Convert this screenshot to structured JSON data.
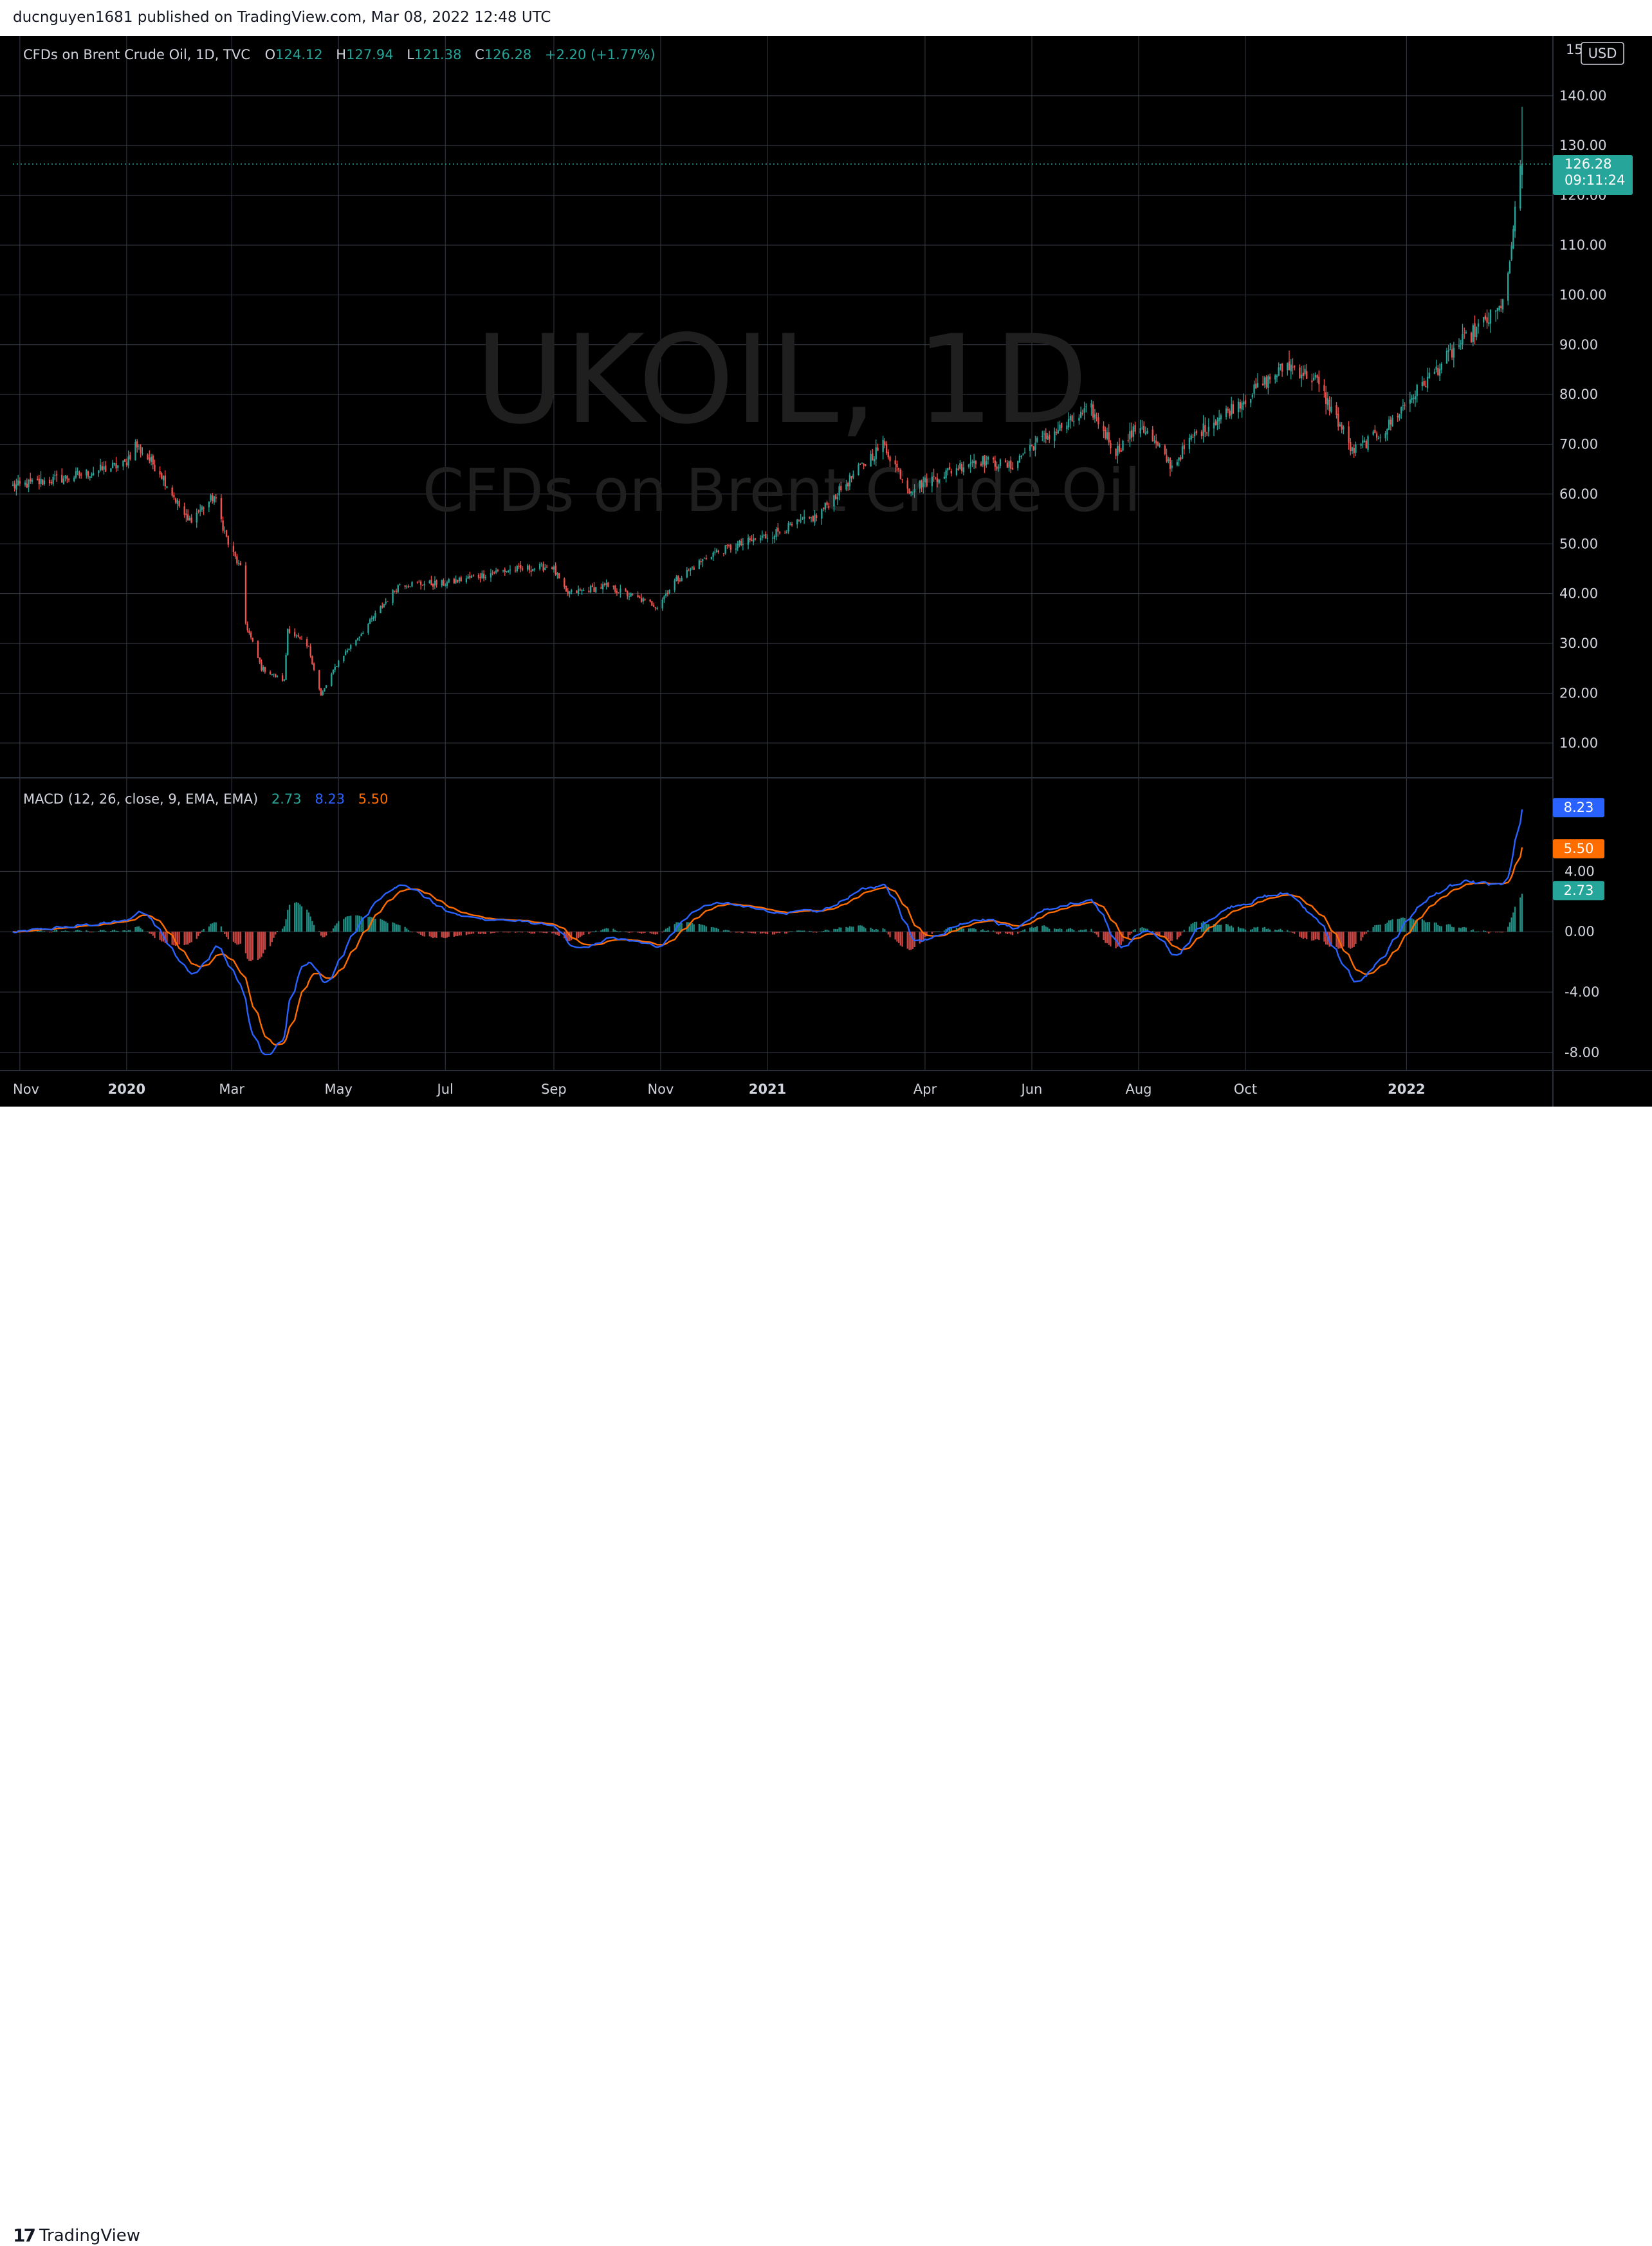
{
  "header": {
    "published_line": "ducnguyen1681 published on TradingView.com, Mar 08, 2022 12:48 UTC"
  },
  "footer": {
    "brand": "TradingView"
  },
  "legend": {
    "instrument": "CFDs on Brent Crude Oil, 1D, TVC",
    "o_label": "O",
    "o_value": "124.12",
    "h_label": "H",
    "h_value": "127.94",
    "l_label": "L",
    "l_value": "121.38",
    "c_label": "C",
    "c_value": "126.28",
    "change": "+2.20 (+1.77%)"
  },
  "watermark": {
    "symbol": "UKOIL, 1D",
    "name": "CFDs on Brent Crude Oil"
  },
  "price_axis": {
    "currency": "USD",
    "last_price": "126.28",
    "countdown": "09:11:24",
    "top_partial_label": "15"
  },
  "macd_legend": {
    "label": "MACD (12, 26, close, 9, EMA, EMA)",
    "hist": "2.73",
    "macd": "8.23",
    "signal": "5.50"
  },
  "colors": {
    "background": "#000000",
    "grid": "#363a45",
    "up": "#26a69a",
    "down": "#ef5350",
    "macd_line": "#2962ff",
    "signal_line": "#ff6d00",
    "text": "#d1d4dc",
    "watermark": "#1f1f1f"
  },
  "chart_data": [
    {
      "type": "candlestick",
      "title": "CFDs on Brent Crude Oil, 1D, TVC",
      "ylim": [
        3,
        152
      ],
      "y_ticks": [
        "10.00",
        "20.00",
        "30.00",
        "40.00",
        "50.00",
        "60.00",
        "70.00",
        "80.00",
        "90.00",
        "100.00",
        "110.00",
        "120.00",
        "130.00",
        "140.00"
      ],
      "x_ticks": [
        "Nov",
        "2020",
        "Mar",
        "May",
        "Jul",
        "Sep",
        "Nov",
        "2021",
        "Apr",
        "Jun",
        "Aug",
        "Oct",
        "2022"
      ],
      "x_start": "2019-10-28",
      "x_end": "2022-03-08",
      "close_keypoints": [
        [
          "2019-10-28",
          61.5
        ],
        [
          "2019-12-01",
          63.5
        ],
        [
          "2019-12-31",
          66.0
        ],
        [
          "2020-01-06",
          70.0
        ],
        [
          "2020-01-20",
          64.5
        ],
        [
          "2020-02-05",
          54.5
        ],
        [
          "2020-02-20",
          59.5
        ],
        [
          "2020-02-28",
          50.0
        ],
        [
          "2020-03-06",
          45.0
        ],
        [
          "2020-03-09",
          34.0
        ],
        [
          "2020-03-18",
          25.0
        ],
        [
          "2020-03-31",
          22.5
        ],
        [
          "2020-04-02",
          33.0
        ],
        [
          "2020-04-14",
          29.0
        ],
        [
          "2020-04-21",
          19.5
        ],
        [
          "2020-05-01",
          26.5
        ],
        [
          "2020-05-15",
          32.5
        ],
        [
          "2020-06-05",
          42.0
        ],
        [
          "2020-06-30",
          42.0
        ],
        [
          "2020-08-01",
          44.5
        ],
        [
          "2020-08-31",
          45.5
        ],
        [
          "2020-09-08",
          40.0
        ],
        [
          "2020-10-01",
          41.5
        ],
        [
          "2020-10-30",
          37.5
        ],
        [
          "2020-11-09",
          42.5
        ],
        [
          "2020-11-30",
          48.0
        ],
        [
          "2020-12-31",
          51.5
        ],
        [
          "2021-01-29",
          55.5
        ],
        [
          "2021-02-25",
          66.0
        ],
        [
          "2021-03-08",
          70.0
        ],
        [
          "2021-03-23",
          61.0
        ],
        [
          "2021-04-30",
          67.0
        ],
        [
          "2021-05-20",
          65.5
        ],
        [
          "2021-05-31",
          69.5
        ],
        [
          "2021-07-05",
          77.0
        ],
        [
          "2021-07-19",
          68.5
        ],
        [
          "2021-08-02",
          74.0
        ],
        [
          "2021-08-20",
          65.5
        ],
        [
          "2021-09-01",
          71.5
        ],
        [
          "2021-09-30",
          79.0
        ],
        [
          "2021-10-25",
          86.0
        ],
        [
          "2021-11-10",
          83.0
        ],
        [
          "2021-11-26",
          72.5
        ],
        [
          "2021-12-01",
          68.5
        ],
        [
          "2021-12-20",
          73.0
        ],
        [
          "2021-12-31",
          78.0
        ],
        [
          "2022-01-31",
          90.0
        ],
        [
          "2022-02-23",
          97.0
        ],
        [
          "2022-03-01",
          105.0
        ],
        [
          "2022-03-04",
          118.0
        ],
        [
          "2022-03-08",
          126.28
        ]
      ],
      "last": {
        "open": 124.12,
        "high": 127.94,
        "low": 121.38,
        "close": 126.28
      }
    },
    {
      "type": "line",
      "title": "MACD (12, 26, close, 9, EMA, EMA)",
      "ylim": [
        -9.2,
        10.2
      ],
      "y_ticks": [
        "-8.00",
        "-4.00",
        "0.00",
        "4.00"
      ],
      "series": [
        {
          "name": "MACD",
          "value": 8.23
        },
        {
          "name": "Signal",
          "value": 5.5
        },
        {
          "name": "Histogram",
          "value": 2.73
        }
      ]
    }
  ]
}
